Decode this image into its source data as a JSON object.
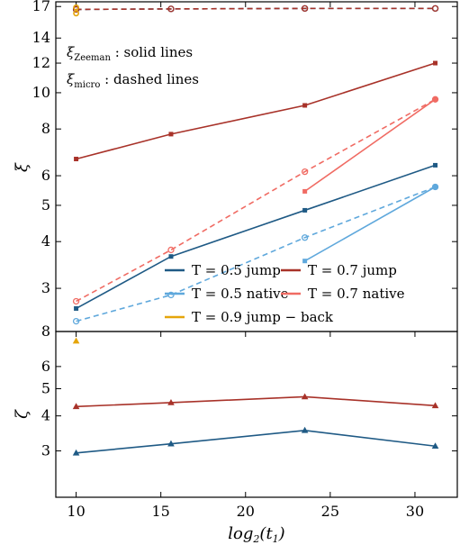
{
  "chart_data": [
    {
      "type": "line",
      "panel": "top",
      "ylabel": "ξ",
      "yscale": "log",
      "ylim": [
        2.3,
        17.5
      ],
      "xlim": [
        8.8,
        32.5
      ],
      "yticks": [
        "3",
        "4",
        "5",
        "6",
        "8",
        "10",
        "12",
        "14",
        "17"
      ],
      "annotations": [
        {
          "main": "ξ",
          "sub": "Zeeman",
          "rest": " : solid  lines"
        },
        {
          "main": "ξ",
          "sub": "micro",
          "rest": " : dashed  lines"
        }
      ],
      "legend": {
        "placement": "lower-right",
        "entries": [
          {
            "label": "T = 0.5 jump",
            "color": "#1f5a85"
          },
          {
            "label": "T = 0.7 jump",
            "color": "#a83229"
          },
          {
            "label": "T = 0.5 native",
            "color": "#5fa8dc"
          },
          {
            "label": "T = 0.7 native",
            "color": "#f06b63"
          },
          {
            "label": "T = 0.9 jump − back",
            "color": "#e5a50a"
          }
        ]
      },
      "series": [
        {
          "name": "T = 0.5 jump",
          "style": "solid",
          "color": "#1f5a85",
          "x": [
            10,
            15.6,
            23.5,
            31.2
          ],
          "y": [
            2.65,
            3.65,
            4.85,
            6.4
          ]
        },
        {
          "name": "T = 0.7 jump",
          "style": "solid",
          "color": "#a83229",
          "x": [
            10,
            15.6,
            23.5,
            31.2
          ],
          "y": [
            6.65,
            7.75,
            9.25,
            12.0
          ]
        },
        {
          "name": "T = 0.5 native",
          "style": "solid",
          "color": "#5fa8dc",
          "x": [
            23.5,
            31.2
          ],
          "y": [
            3.55,
            5.6
          ]
        },
        {
          "name": "T = 0.7 native",
          "style": "solid",
          "color": "#f06b63",
          "x": [
            23.5,
            31.2
          ],
          "y": [
            5.45,
            9.6
          ]
        },
        {
          "name": "T = 0.5 jump",
          "style": "dashed",
          "color": "#1f5a85",
          "x": [
            10,
            15.6,
            23.5,
            31.2
          ],
          "y": [
            16.7,
            16.75,
            16.8,
            16.8
          ]
        },
        {
          "name": "T = 0.7 jump",
          "style": "dashed",
          "color": "#a83229",
          "x": [
            10,
            15.6,
            23.5,
            31.2
          ],
          "y": [
            16.7,
            16.75,
            16.8,
            16.8
          ]
        },
        {
          "name": "T = 0.5 native",
          "style": "dashed",
          "color": "#5fa8dc",
          "x": [
            10,
            15.6,
            23.5,
            31.2
          ],
          "y": [
            2.45,
            2.88,
            4.1,
            5.6
          ]
        },
        {
          "name": "T = 0.7 native",
          "style": "dashed",
          "color": "#f06b63",
          "x": [
            10,
            15.6,
            23.5,
            31.2
          ],
          "y": [
            2.77,
            3.8,
            6.15,
            9.6
          ]
        },
        {
          "name": "T = 0.9 jump − back",
          "style": "points",
          "color": "#e5a50a",
          "x": [
            10,
            10
          ],
          "y": [
            16.9,
            16.3
          ]
        }
      ]
    },
    {
      "type": "line",
      "panel": "bottom",
      "xlabel": "log2(t1)",
      "ylabel": "ζ",
      "yscale": "log",
      "ylim": [
        2.05,
        8.0
      ],
      "xlim": [
        8.8,
        32.5
      ],
      "xticks": [
        "10",
        "15",
        "20",
        "25",
        "30"
      ],
      "yticks": [
        "3",
        "4",
        "5",
        "6",
        "8"
      ],
      "series": [
        {
          "name": "T = 0.5 jump",
          "color": "#1f5a85",
          "x": [
            10,
            15.6,
            23.5,
            31.2
          ],
          "y": [
            2.95,
            3.18,
            3.55,
            3.12
          ]
        },
        {
          "name": "T = 0.7 jump",
          "color": "#a83229",
          "x": [
            10,
            15.6,
            23.5,
            31.2
          ],
          "y": [
            4.32,
            4.46,
            4.68,
            4.35
          ]
        },
        {
          "name": "T = 0.9 jump − back",
          "color": "#e5a50a",
          "x": [
            10
          ],
          "y": [
            7.4
          ]
        }
      ]
    }
  ]
}
